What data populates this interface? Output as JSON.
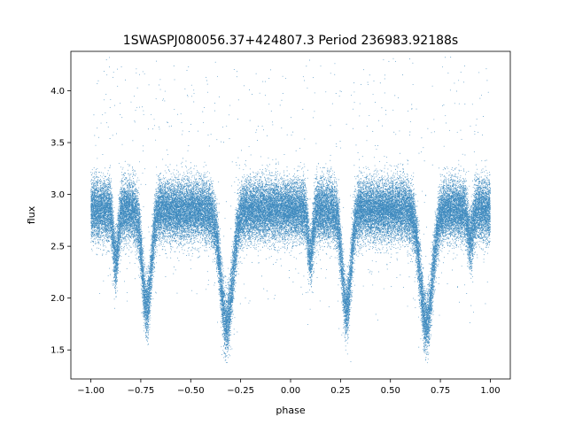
{
  "chart_data": {
    "type": "scatter",
    "title": "1SWASPJ080056.37+424807.3 Period 236983.92188s",
    "xlabel": "phase",
    "ylabel": "flux",
    "xlim": [
      -1.1,
      1.1
    ],
    "ylim": [
      1.22,
      4.38
    ],
    "xticks": [
      -1.0,
      -0.75,
      -0.5,
      -0.25,
      0.0,
      0.25,
      0.5,
      0.75,
      1.0
    ],
    "xtick_labels": [
      "−1.00",
      "−0.75",
      "−0.50",
      "−0.25",
      "0.00",
      "0.25",
      "0.50",
      "0.75",
      "1.00"
    ],
    "yticks": [
      1.5,
      2.0,
      2.5,
      3.0,
      3.5,
      4.0
    ],
    "ytick_labels": [
      "1.5",
      "2.0",
      "2.5",
      "3.0",
      "3.5",
      "4.0"
    ],
    "grid": false,
    "legend": "none",
    "marker_color": "#1f77b4",
    "series": [
      {
        "baseline_flux": 2.85,
        "scatter_sd": 0.14,
        "points_shown": 60000,
        "dips": [
          {
            "phase": -0.72,
            "depth": 0.95,
            "width": 0.022
          },
          {
            "phase": -0.32,
            "depth": 1.1,
            "width": 0.03
          },
          {
            "phase": 0.28,
            "depth": 0.95,
            "width": 0.022
          },
          {
            "phase": 0.68,
            "depth": 1.1,
            "width": 0.03
          },
          {
            "phase": -0.875,
            "depth": 0.5,
            "width": 0.012
          },
          {
            "phase": 0.1,
            "depth": 0.45,
            "width": 0.012
          },
          {
            "phase": 0.9,
            "depth": 0.3,
            "width": 0.012
          }
        ]
      }
    ]
  }
}
